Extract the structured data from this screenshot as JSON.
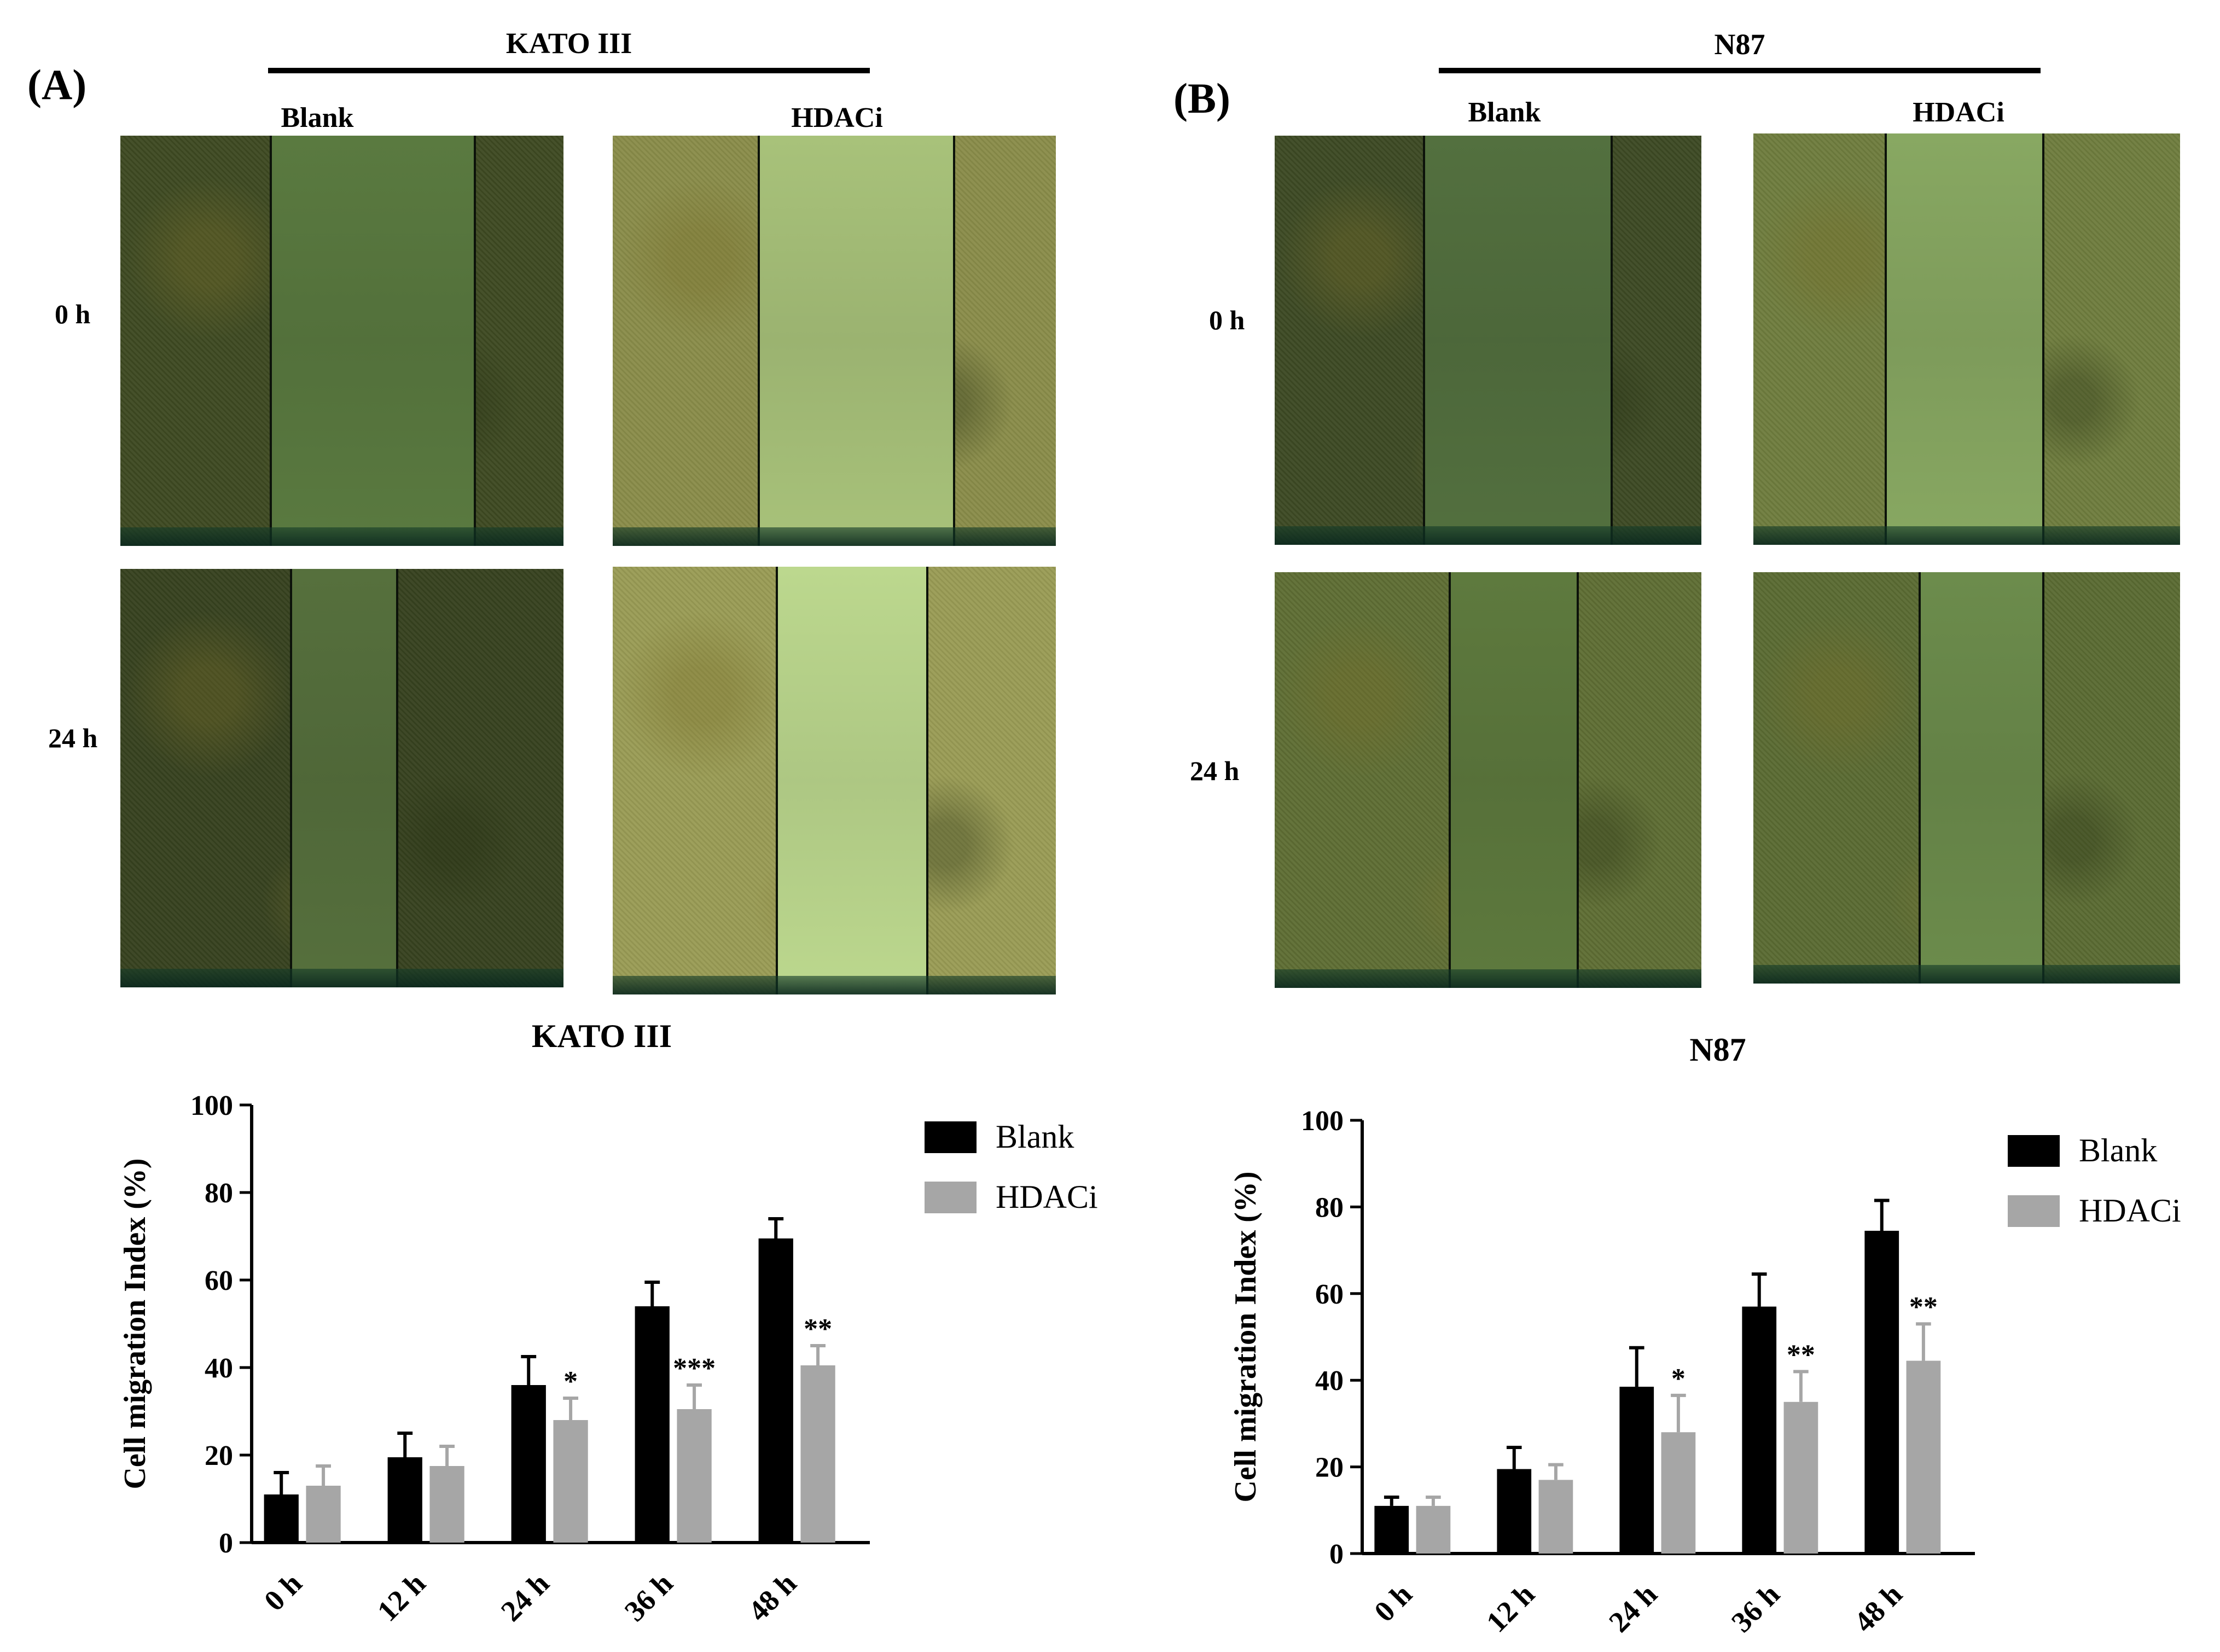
{
  "panels": [
    {
      "label": "(A)",
      "cell_line": "KATO III",
      "columns": [
        "Blank",
        "HDACi"
      ],
      "rows": [
        "0 h",
        "24 h"
      ],
      "micrographs": [
        {
          "tone": "dark",
          "colors": {
            "base": "#3e4a22",
            "gap": "#5a7a40"
          }
        },
        {
          "tone": "light",
          "colors": {
            "base": "#8a8d4a",
            "gap": "#a8c27a"
          }
        },
        {
          "tone": "dark",
          "colors": {
            "base": "#37421f",
            "gap": "#56703d"
          }
        },
        {
          "tone": "light",
          "colors": {
            "base": "#9a9c55",
            "gap": "#bcd88e"
          }
        }
      ]
    },
    {
      "label": "(B)",
      "cell_line": "N87",
      "columns": [
        "Blank",
        "HDACi"
      ],
      "rows": [
        "0 h",
        "24 h"
      ],
      "micrographs": [
        {
          "tone": "dark",
          "colors": {
            "base": "#3d4a24",
            "gap": "#53703f"
          }
        },
        {
          "tone": "medium",
          "colors": {
            "base": "#6f7d3e",
            "gap": "#88a862"
          }
        },
        {
          "tone": "medium",
          "colors": {
            "base": "#5f6e34",
            "gap": "#5e7a3e"
          }
        },
        {
          "tone": "medium",
          "colors": {
            "base": "#5b6b33",
            "gap": "#6c8c4c"
          }
        }
      ]
    }
  ],
  "chart_data": [
    {
      "type": "bar",
      "title": "KATO III",
      "ylabel": "Cell migration Index (%)",
      "xlabel": "",
      "categories": [
        "0 h",
        "12 h",
        "24 h",
        "36 h",
        "48 h"
      ],
      "ylim": [
        0,
        100
      ],
      "yticks": [
        0,
        20,
        40,
        60,
        80,
        100
      ],
      "series": [
        {
          "name": "Blank",
          "color": "#000000",
          "values": [
            11,
            19.5,
            36,
            54,
            69.5
          ],
          "errors": [
            5,
            5.5,
            6.5,
            5.5,
            4.5
          ],
          "significance": [
            "",
            "",
            "",
            "",
            ""
          ]
        },
        {
          "name": "HDACi",
          "color": "#a6a6a6",
          "values": [
            13,
            17.5,
            28,
            30.5,
            40.5
          ],
          "errors": [
            4.5,
            4.5,
            5,
            5.5,
            4.5
          ],
          "significance": [
            "",
            "",
            "*",
            "***",
            "**"
          ]
        }
      ],
      "legend": "top-right"
    },
    {
      "type": "bar",
      "title": "N87",
      "ylabel": "Cell migration Index (%)",
      "xlabel": "",
      "categories": [
        "0 h",
        "12 h",
        "24 h",
        "36 h",
        "48 h"
      ],
      "ylim": [
        0,
        100
      ],
      "yticks": [
        0,
        20,
        40,
        60,
        80,
        100
      ],
      "series": [
        {
          "name": "Blank",
          "color": "#000000",
          "values": [
            11,
            19.5,
            38.5,
            57,
            74.5
          ],
          "errors": [
            2,
            5,
            9,
            7.5,
            7
          ],
          "significance": [
            "",
            "",
            "",
            "",
            ""
          ]
        },
        {
          "name": "HDACi",
          "color": "#a6a6a6",
          "values": [
            11,
            17,
            28,
            35,
            44.5
          ],
          "errors": [
            2,
            3.5,
            8.5,
            7,
            8.5
          ],
          "significance": [
            "",
            "",
            "*",
            "**",
            "**"
          ]
        }
      ],
      "legend": "top-right"
    }
  ]
}
